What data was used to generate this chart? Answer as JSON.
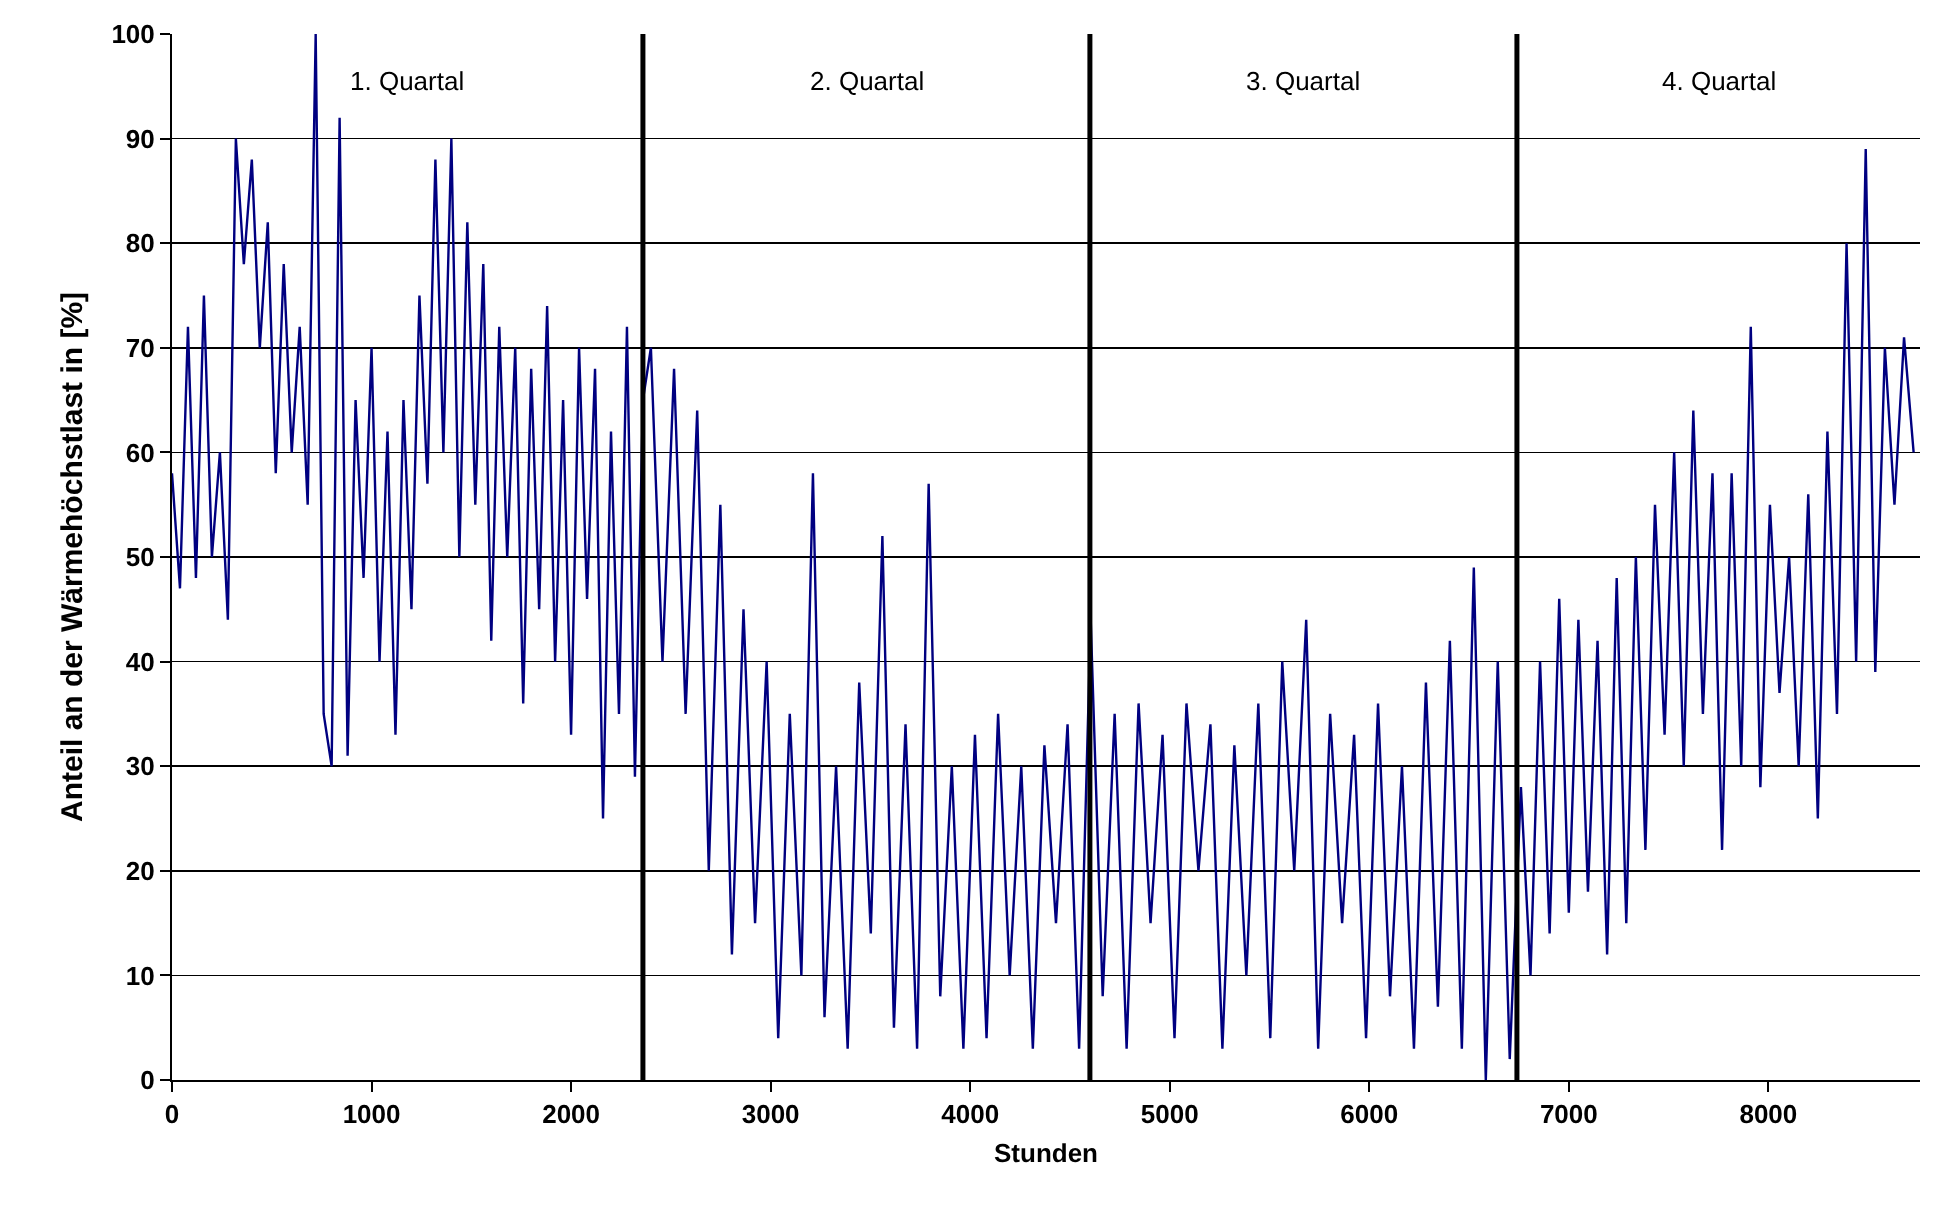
{
  "chart_data": {
    "type": "line",
    "xlabel": "Stunden",
    "ylabel": "Anteil an der Wärmehöchstlast in [%]",
    "xlim": [
      0,
      8760
    ],
    "xticks": [
      0,
      1000,
      2000,
      3000,
      4000,
      5000,
      6000,
      7000,
      8000
    ],
    "ylim": [
      0,
      100
    ],
    "yticks": [
      0,
      10,
      20,
      30,
      40,
      50,
      60,
      70,
      80,
      90,
      100
    ],
    "grid": "y",
    "marker": "none",
    "line_style": "solid",
    "series": [
      {
        "color": "#000080",
        "x": [
          0,
          40,
          80,
          120,
          160,
          200,
          240,
          280,
          320,
          360,
          400,
          440,
          480,
          520,
          560,
          600,
          640,
          680,
          720,
          760,
          800,
          840,
          880,
          920,
          960,
          1000,
          1040,
          1080,
          1120,
          1160,
          1200,
          1240,
          1280,
          1320,
          1360,
          1400,
          1440,
          1480,
          1520,
          1560,
          1600,
          1640,
          1680,
          1720,
          1760,
          1800,
          1840,
          1880,
          1920,
          1960,
          2000,
          2040,
          2080,
          2120,
          2160,
          2200,
          2240,
          2280,
          2320,
          2360,
          2400,
          2458,
          2516,
          2574,
          2632,
          2690,
          2748,
          2806,
          2864,
          2922,
          2980,
          3038,
          3096,
          3154,
          3212,
          3270,
          3328,
          3386,
          3444,
          3502,
          3560,
          3618,
          3676,
          3734,
          3792,
          3850,
          3908,
          3966,
          4024,
          4082,
          4140,
          4198,
          4256,
          4314,
          4372,
          4430,
          4488,
          4546,
          4604,
          4664,
          4724,
          4784,
          4844,
          4904,
          4964,
          5024,
          5084,
          5144,
          5204,
          5264,
          5324,
          5384,
          5444,
          5504,
          5564,
          5624,
          5684,
          5744,
          5804,
          5864,
          5924,
          5984,
          6044,
          6104,
          6164,
          6224,
          6284,
          6344,
          6404,
          6464,
          6524,
          6584,
          6644,
          6704,
          6760,
          6808,
          6856,
          6904,
          6952,
          7000,
          7048,
          7096,
          7144,
          7192,
          7240,
          7288,
          7336,
          7384,
          7432,
          7480,
          7528,
          7576,
          7624,
          7672,
          7720,
          7768,
          7816,
          7864,
          7912,
          7960,
          8008,
          8056,
          8104,
          8152,
          8200,
          8248,
          8296,
          8344,
          8392,
          8440,
          8488,
          8536,
          8584,
          8632,
          8680,
          8728
        ],
        "values": [
          58,
          47,
          72,
          48,
          75,
          50,
          60,
          44,
          90,
          78,
          88,
          70,
          82,
          58,
          78,
          60,
          72,
          55,
          100,
          35,
          30,
          92,
          31,
          65,
          48,
          70,
          40,
          62,
          33,
          65,
          45,
          75,
          57,
          88,
          60,
          90,
          50,
          82,
          55,
          78,
          42,
          72,
          50,
          70,
          36,
          68,
          45,
          74,
          40,
          65,
          33,
          70,
          46,
          68,
          25,
          62,
          35,
          72,
          29,
          65,
          70,
          40,
          68,
          35,
          64,
          20,
          55,
          12,
          45,
          15,
          40,
          4,
          35,
          10,
          58,
          6,
          30,
          3,
          38,
          14,
          52,
          5,
          34,
          3,
          57,
          8,
          30,
          3,
          33,
          4,
          35,
          10,
          30,
          3,
          32,
          15,
          34,
          3,
          44,
          8,
          35,
          3,
          36,
          15,
          33,
          4,
          36,
          20,
          34,
          3,
          32,
          10,
          36,
          4,
          40,
          20,
          44,
          3,
          35,
          15,
          33,
          4,
          36,
          8,
          30,
          3,
          38,
          7,
          42,
          3,
          49,
          0,
          40,
          2,
          28,
          10,
          40,
          14,
          46,
          16,
          44,
          18,
          42,
          12,
          48,
          15,
          50,
          22,
          55,
          33,
          60,
          30,
          64,
          35,
          58,
          22,
          58,
          30,
          72,
          28,
          55,
          37,
          50,
          30,
          56,
          25,
          62,
          35,
          80,
          40,
          89,
          39,
          70,
          55,
          71,
          60
        ]
      }
    ],
    "ref_lines": [
      {
        "axis": "x",
        "value": 2360,
        "color": "#000000"
      },
      {
        "axis": "x",
        "value": 4600,
        "color": "#000000"
      },
      {
        "axis": "x",
        "value": 6740,
        "color": "#000000"
      }
    ],
    "annotations": [
      "1. Quartal",
      "2. Quartal",
      "3. Quartal",
      "4. Quartal"
    ]
  }
}
